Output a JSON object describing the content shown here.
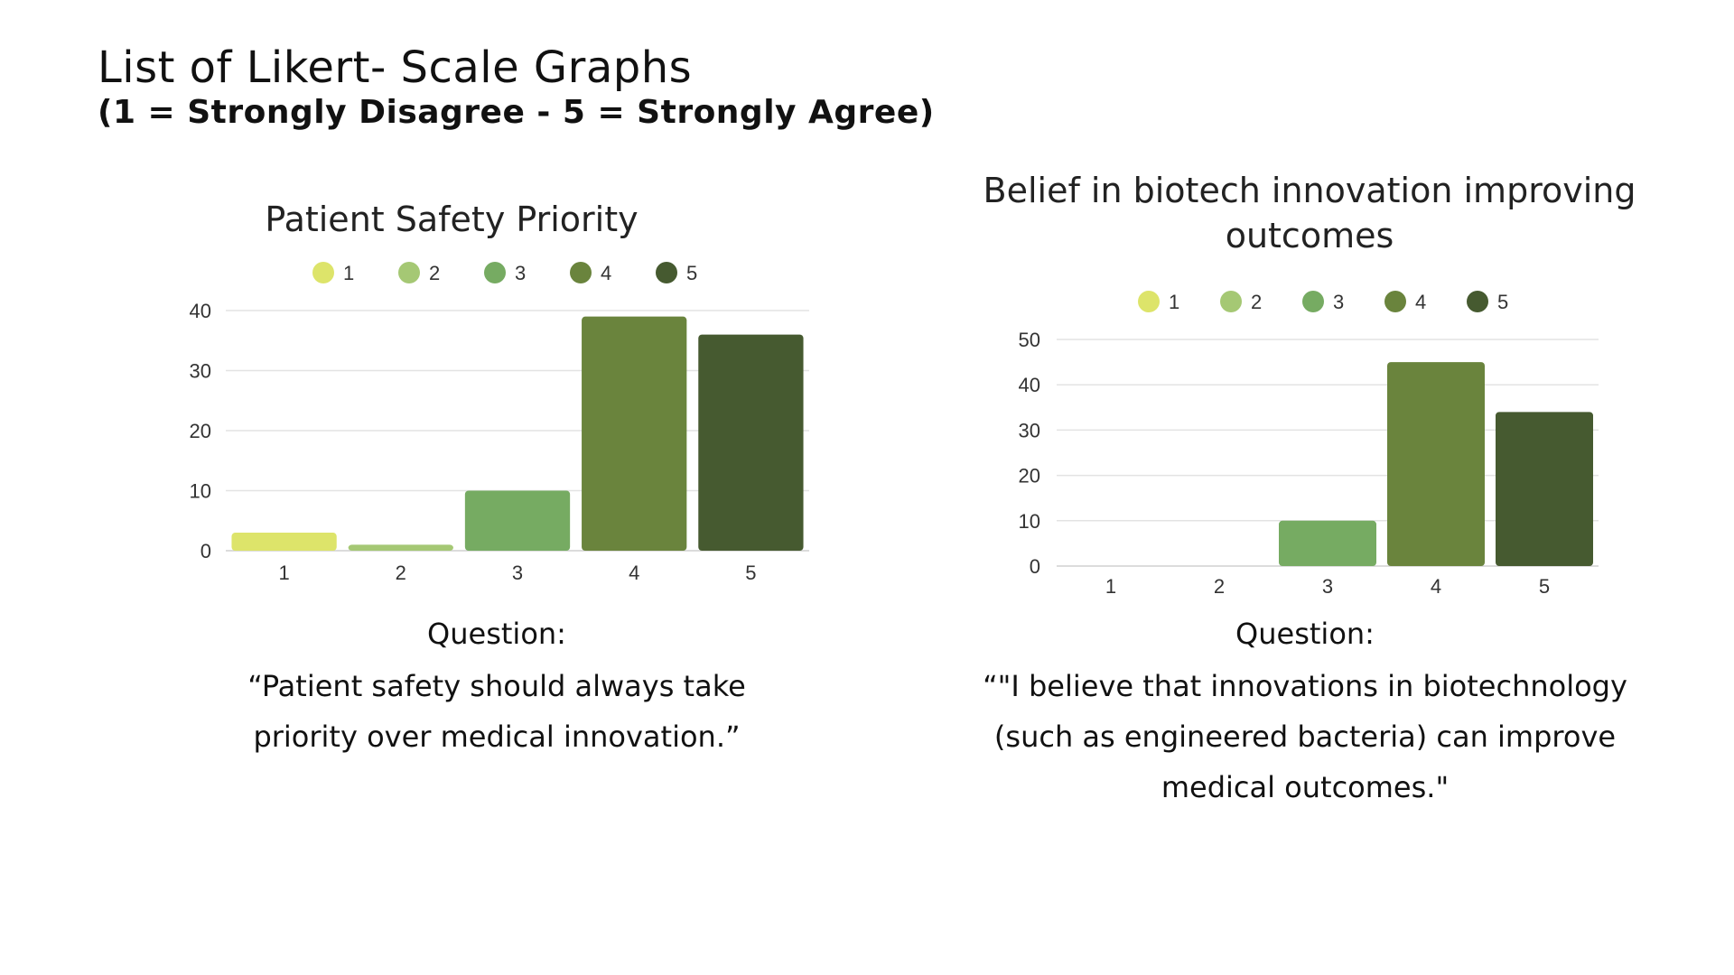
{
  "page": {
    "title": "List of Likert- Scale Graphs",
    "subtitle": "(1 = Strongly Disagree - 5 = Strongly Agree)"
  },
  "colors": {
    "1": "#dde46a",
    "2": "#a5c874",
    "3": "#76ab62",
    "4": "#6a843d",
    "5": "#465a30",
    "gridline": "#e3e3e3",
    "axis": "#d0d0d0"
  },
  "chart_data": [
    {
      "type": "bar",
      "title": "Patient Safety Priority",
      "categories": [
        "1",
        "2",
        "3",
        "4",
        "5"
      ],
      "values": [
        3,
        1,
        10,
        39,
        36
      ],
      "legend": [
        "1",
        "2",
        "3",
        "4",
        "5"
      ],
      "legend_position": "top",
      "y_ticks": [
        0,
        10,
        20,
        30,
        40
      ],
      "ylim": [
        0,
        40
      ],
      "grid": true
    },
    {
      "type": "bar",
      "title": "Belief in biotech innovation improving outcomes",
      "title_lines": [
        "Belief in biotech innovation improving",
        "outcomes"
      ],
      "categories": [
        "1",
        "2",
        "3",
        "4",
        "5"
      ],
      "values": [
        0,
        0,
        10,
        45,
        34
      ],
      "legend": [
        "1",
        "2",
        "3",
        "4",
        "5"
      ],
      "legend_position": "top",
      "y_ticks": [
        0,
        10,
        20,
        30,
        40,
        50
      ],
      "ylim": [
        0,
        50
      ],
      "grid": true
    }
  ],
  "questions": [
    {
      "label": "Question:",
      "text_lines": [
        "“Patient safety should always take",
        "priority over medical innovation.”"
      ]
    },
    {
      "label": "Question:",
      "text_lines": [
        "“\"I believe that innovations in biotechnology",
        "(such as engineered bacteria) can improve",
        "medical outcomes.\""
      ]
    }
  ]
}
